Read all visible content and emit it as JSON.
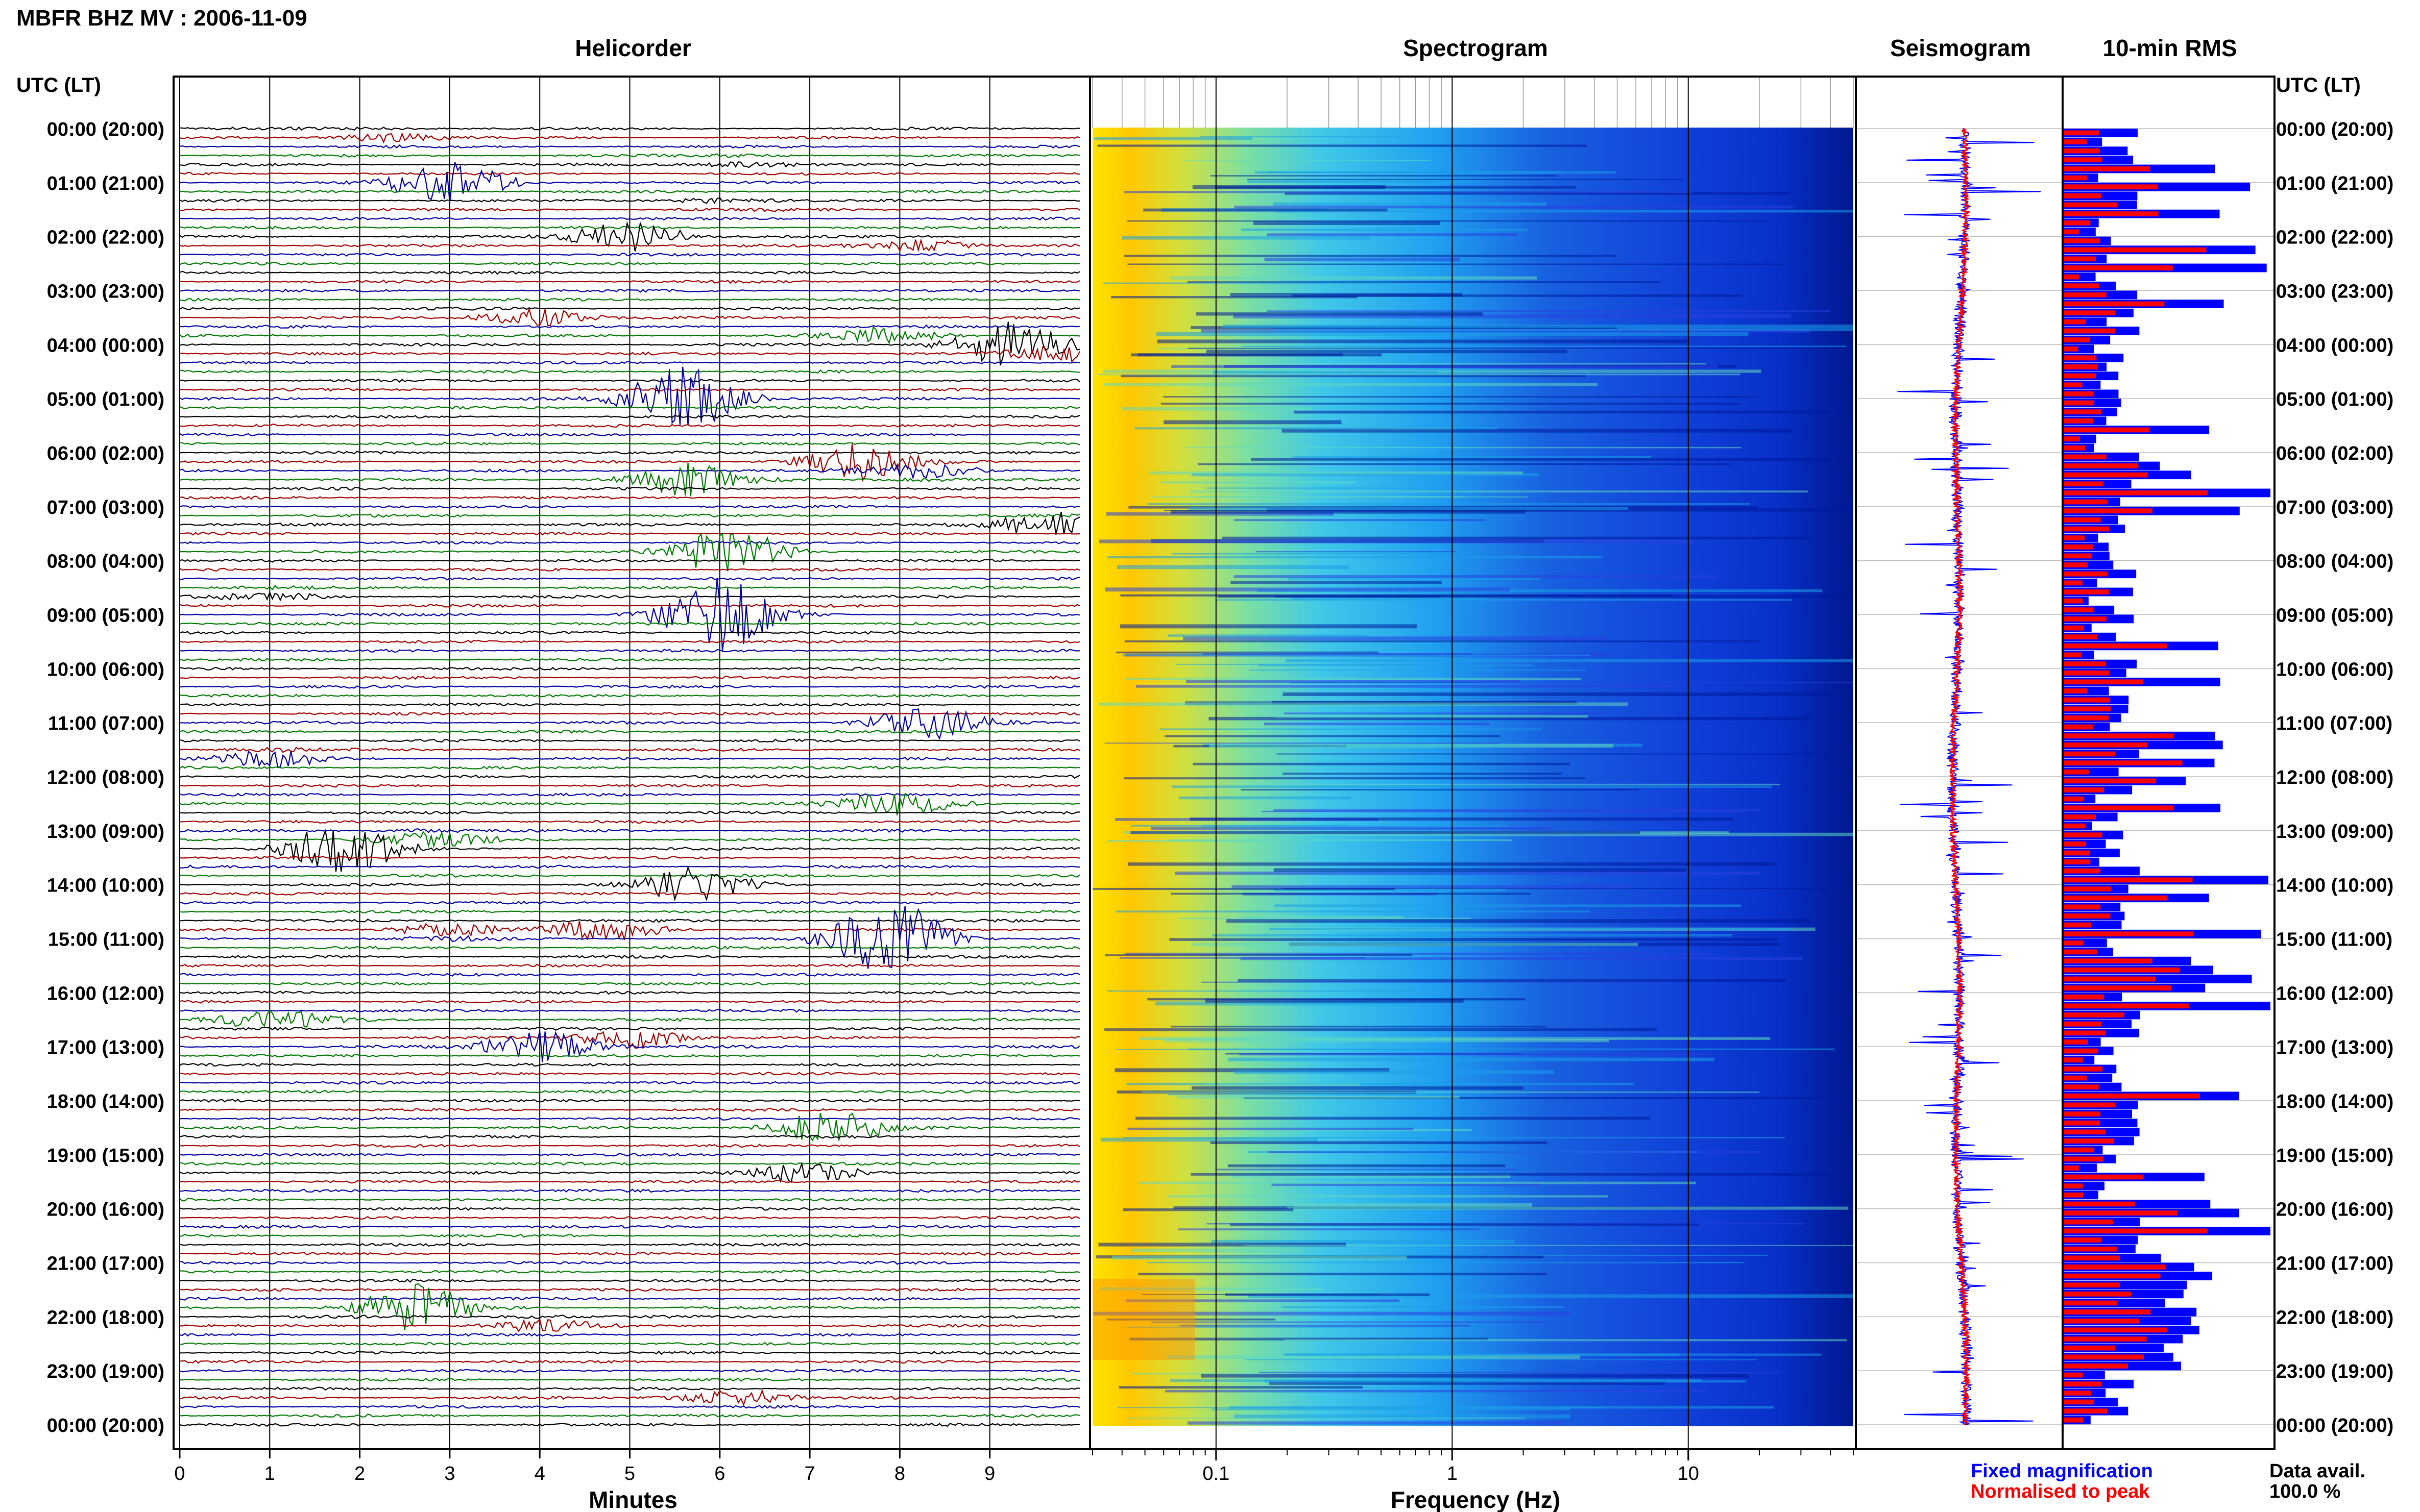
{
  "chart_data": {
    "type": "multi-panel seismic summary",
    "title": "MBFR BHZ MV : 2006-11-09",
    "panels": {
      "helicorder": {
        "title": "Helicorder",
        "xlabel": "Minutes",
        "x_ticks": [
          0,
          1,
          2,
          3,
          4,
          5,
          6,
          7,
          8,
          9
        ],
        "xlim": [
          0,
          10
        ],
        "trace_colors": [
          "#000000",
          "#a00000",
          "#0000a0",
          "#007a00"
        ],
        "traces_per_hour": 6
      },
      "spectrogram": {
        "title": "Spectrogram",
        "xlabel": "Frequency (Hz)",
        "x_scale": "log",
        "x_ticks": [
          0.1,
          1,
          10
        ],
        "x_tick_labels": [
          "0.1",
          "1",
          "10"
        ],
        "xlim": [
          0.03,
          50
        ]
      },
      "seismogram": {
        "title": "Seismogram",
        "legend": [
          {
            "label": "Fixed magnification",
            "color": "#0000ff"
          },
          {
            "label": "Normalised to peak",
            "color": "#ff0000"
          }
        ]
      },
      "rms": {
        "title": "10-min RMS",
        "series_colors": {
          "fixed": "#0000ff",
          "normalised": "#ff0000"
        }
      }
    },
    "y_axis": {
      "label": "UTC (LT)",
      "tick_labels": [
        "00:00 (20:00)",
        "01:00 (21:00)",
        "02:00 (22:00)",
        "03:00 (23:00)",
        "04:00 (00:00)",
        "05:00 (01:00)",
        "06:00 (02:00)",
        "07:00 (03:00)",
        "08:00 (04:00)",
        "09:00 (05:00)",
        "10:00 (06:00)",
        "11:00 (07:00)",
        "12:00 (08:00)",
        "13:00 (09:00)",
        "14:00 (10:00)",
        "15:00 (11:00)",
        "16:00 (12:00)",
        "17:00 (13:00)",
        "18:00 (14:00)",
        "19:00 (15:00)",
        "20:00 (16:00)",
        "21:00 (17:00)",
        "22:00 (18:00)",
        "23:00 (19:00)",
        "00:00 (20:00)"
      ]
    },
    "events": [
      {
        "hour": 0.1,
        "minute": 2.3,
        "amp": 0.9
      },
      {
        "hour": 0.6,
        "minute": 6.3,
        "amp": 0.6
      },
      {
        "hour": 1.0,
        "minute": 3.0,
        "amp": 1.5
      },
      {
        "hour": 1.4,
        "minute": 6.0,
        "amp": 0.6
      },
      {
        "hour": 2.0,
        "minute": 5.0,
        "amp": 1.0
      },
      {
        "hour": 2.2,
        "minute": 8.2,
        "amp": 0.6
      },
      {
        "hour": 3.5,
        "minute": 4.0,
        "amp": 0.6
      },
      {
        "hour": 3.8,
        "minute": 7.8,
        "amp": 0.7
      },
      {
        "hour": 4.0,
        "minute": 9.2,
        "amp": 1.6
      },
      {
        "hour": 4.2,
        "minute": 9.8,
        "amp": 0.7
      },
      {
        "hour": 5.0,
        "minute": 5.6,
        "amp": 2.2
      },
      {
        "hour": 6.2,
        "minute": 7.5,
        "amp": 1.7
      },
      {
        "hour": 6.4,
        "minute": 8.3,
        "amp": 1.4
      },
      {
        "hour": 6.5,
        "minute": 5.6,
        "amp": 1.1
      },
      {
        "hour": 7.3,
        "minute": 9.7,
        "amp": 1.2
      },
      {
        "hour": 7.8,
        "minute": 6.1,
        "amp": 2.0
      },
      {
        "hour": 8.6,
        "minute": 1.0,
        "amp": 0.7
      },
      {
        "hour": 9.0,
        "minute": 6.0,
        "amp": 2.5
      },
      {
        "hour": 11.0,
        "minute": 8.3,
        "amp": 1.1
      },
      {
        "hour": 11.6,
        "minute": 1.0,
        "amp": 1.6
      },
      {
        "hour": 12.5,
        "minute": 8.0,
        "amp": 0.8
      },
      {
        "hour": 13.3,
        "minute": 1.8,
        "amp": 2.3
      },
      {
        "hour": 13.1,
        "minute": 2.8,
        "amp": 1.4
      },
      {
        "hour": 14.0,
        "minute": 5.7,
        "amp": 1.1
      },
      {
        "hour": 14.9,
        "minute": 3.0,
        "amp": 1.5
      },
      {
        "hour": 15.0,
        "minute": 7.9,
        "amp": 2.6
      },
      {
        "hour": 14.8,
        "minute": 4.7,
        "amp": 1.0
      },
      {
        "hour": 16.5,
        "minute": 1.0,
        "amp": 0.8
      },
      {
        "hour": 16.8,
        "minute": 5.0,
        "amp": 1.0
      },
      {
        "hour": 17.0,
        "minute": 4.0,
        "amp": 1.2
      },
      {
        "hour": 18.5,
        "minute": 7.2,
        "amp": 1.2
      },
      {
        "hour": 19.3,
        "minute": 6.9,
        "amp": 0.8
      },
      {
        "hour": 21.8,
        "minute": 2.6,
        "amp": 2.2
      },
      {
        "hour": 22.1,
        "minute": 4.0,
        "amp": 1.2
      },
      {
        "hour": 23.5,
        "minute": 6.2,
        "amp": 0.6
      }
    ],
    "footer": {
      "data_avail_label": "Data avail.",
      "data_avail_value": "100.0 %"
    }
  }
}
